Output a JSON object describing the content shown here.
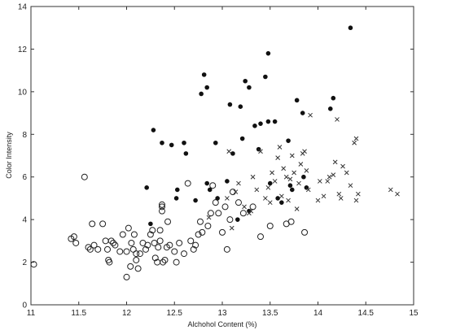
{
  "chart_data": {
    "type": "scatter",
    "title": "",
    "xlabel": "Alchohol Content (%)",
    "ylabel": "Color Intensity",
    "xlim": [
      11,
      15
    ],
    "ylim": [
      0,
      14
    ],
    "xticks": [
      11,
      11.5,
      12,
      12.5,
      13,
      13.5,
      14,
      14.5,
      15
    ],
    "yticks": [
      0,
      2,
      4,
      6,
      8,
      10,
      12,
      14
    ],
    "xtick_labels": [
      "11",
      "11.5",
      "12",
      "12.5",
      "13",
      "13.5",
      "14",
      "14.5",
      "15"
    ],
    "ytick_labels": [
      "0",
      "2",
      "4",
      "6",
      "8",
      "10",
      "12",
      "14"
    ],
    "grid": false,
    "legend": "none",
    "series": [
      {
        "marker": "circle",
        "color": "#222222",
        "points": [
          [
            11.03,
            1.9
          ],
          [
            11.42,
            3.1
          ],
          [
            11.45,
            3.2
          ],
          [
            11.47,
            2.9
          ],
          [
            11.56,
            6.0
          ],
          [
            11.6,
            2.7
          ],
          [
            11.62,
            2.6
          ],
          [
            11.64,
            3.8
          ],
          [
            11.66,
            2.8
          ],
          [
            11.7,
            2.6
          ],
          [
            11.75,
            3.8
          ],
          [
            11.78,
            3.0
          ],
          [
            11.8,
            2.6
          ],
          [
            11.81,
            2.1
          ],
          [
            11.82,
            2.0
          ],
          [
            11.84,
            3.0
          ],
          [
            11.86,
            2.9
          ],
          [
            11.88,
            2.8
          ],
          [
            11.93,
            2.5
          ],
          [
            11.96,
            3.3
          ],
          [
            12.0,
            2.5
          ],
          [
            12.02,
            3.6
          ],
          [
            12.0,
            1.3
          ],
          [
            12.04,
            1.8
          ],
          [
            12.05,
            2.9
          ],
          [
            12.07,
            2.6
          ],
          [
            12.08,
            3.3
          ],
          [
            12.1,
            2.4
          ],
          [
            12.1,
            2.1
          ],
          [
            12.12,
            1.7
          ],
          [
            12.14,
            2.4
          ],
          [
            12.17,
            2.9
          ],
          [
            12.2,
            2.6
          ],
          [
            12.22,
            2.8
          ],
          [
            12.25,
            3.3
          ],
          [
            12.27,
            3.5
          ],
          [
            12.29,
            2.9
          ],
          [
            12.3,
            2.2
          ],
          [
            12.32,
            2.0
          ],
          [
            12.33,
            2.7
          ],
          [
            12.35,
            3.0
          ],
          [
            12.35,
            3.5
          ],
          [
            12.37,
            4.7
          ],
          [
            12.37,
            4.6
          ],
          [
            12.37,
            4.4
          ],
          [
            12.38,
            2.0
          ],
          [
            12.4,
            2.1
          ],
          [
            12.42,
            2.7
          ],
          [
            12.43,
            3.9
          ],
          [
            12.45,
            2.8
          ],
          [
            12.5,
            2.5
          ],
          [
            12.52,
            2.0
          ],
          [
            12.55,
            2.9
          ],
          [
            12.6,
            2.4
          ],
          [
            12.64,
            5.7
          ],
          [
            12.67,
            3.0
          ],
          [
            12.7,
            2.6
          ],
          [
            12.72,
            2.8
          ],
          [
            12.75,
            3.3
          ],
          [
            12.77,
            3.9
          ],
          [
            12.79,
            3.4
          ],
          [
            12.85,
            3.7
          ],
          [
            12.88,
            4.3
          ],
          [
            12.9,
            5.6
          ],
          [
            12.93,
            4.8
          ],
          [
            12.96,
            4.3
          ],
          [
            13.0,
            3.4
          ],
          [
            13.03,
            4.6
          ],
          [
            13.05,
            2.6
          ],
          [
            13.08,
            4.0
          ],
          [
            13.11,
            5.3
          ],
          [
            13.17,
            4.8
          ],
          [
            13.22,
            4.3
          ],
          [
            13.32,
            4.6
          ],
          [
            13.4,
            3.2
          ],
          [
            13.5,
            3.7
          ],
          [
            13.67,
            3.8
          ],
          [
            13.72,
            3.9
          ],
          [
            13.86,
            3.4
          ]
        ]
      },
      {
        "marker": "star",
        "color": "#111111",
        "points": [
          [
            12.21,
            5.5
          ],
          [
            12.25,
            3.8
          ],
          [
            12.28,
            8.2
          ],
          [
            12.37,
            7.6
          ],
          [
            12.47,
            7.5
          ],
          [
            12.52,
            5.0
          ],
          [
            12.53,
            5.4
          ],
          [
            12.6,
            7.6
          ],
          [
            12.62,
            7.1
          ],
          [
            12.72,
            4.9
          ],
          [
            12.78,
            9.9
          ],
          [
            12.81,
            10.8
          ],
          [
            12.84,
            10.2
          ],
          [
            12.84,
            5.7
          ],
          [
            12.87,
            5.4
          ],
          [
            12.93,
            7.6
          ],
          [
            12.95,
            5.0
          ],
          [
            13.05,
            5.8
          ],
          [
            13.08,
            9.4
          ],
          [
            13.11,
            7.1
          ],
          [
            13.16,
            4.0
          ],
          [
            13.19,
            9.3
          ],
          [
            13.21,
            7.8
          ],
          [
            13.24,
            10.5
          ],
          [
            13.28,
            10.2
          ],
          [
            13.28,
            4.4
          ],
          [
            13.34,
            8.4
          ],
          [
            13.38,
            7.3
          ],
          [
            13.4,
            8.5
          ],
          [
            13.45,
            10.7
          ],
          [
            13.48,
            11.8
          ],
          [
            13.48,
            8.6
          ],
          [
            13.5,
            5.7
          ],
          [
            13.55,
            8.6
          ],
          [
            13.58,
            5.0
          ],
          [
            13.62,
            4.8
          ],
          [
            13.69,
            7.7
          ],
          [
            13.71,
            5.6
          ],
          [
            13.73,
            5.4
          ],
          [
            13.78,
            9.6
          ],
          [
            13.84,
            9.0
          ],
          [
            13.85,
            6.0
          ],
          [
            13.88,
            5.5
          ],
          [
            14.13,
            9.2
          ],
          [
            14.16,
            9.7
          ],
          [
            14.34,
            13.0
          ]
        ]
      },
      {
        "marker": "x",
        "color": "#333333",
        "points": [
          [
            12.86,
            4.1
          ],
          [
            13.05,
            5.0
          ],
          [
            13.07,
            7.2
          ],
          [
            13.1,
            3.6
          ],
          [
            13.14,
            5.3
          ],
          [
            13.17,
            5.7
          ],
          [
            13.23,
            4.6
          ],
          [
            13.28,
            4.3
          ],
          [
            13.3,
            4.4
          ],
          [
            13.32,
            6.0
          ],
          [
            13.36,
            5.4
          ],
          [
            13.4,
            7.2
          ],
          [
            13.45,
            5.0
          ],
          [
            13.48,
            5.5
          ],
          [
            13.5,
            4.8
          ],
          [
            13.52,
            6.2
          ],
          [
            13.55,
            5.8
          ],
          [
            13.58,
            6.9
          ],
          [
            13.6,
            7.4
          ],
          [
            13.62,
            5.1
          ],
          [
            13.64,
            6.4
          ],
          [
            13.67,
            6.0
          ],
          [
            13.69,
            4.9
          ],
          [
            13.71,
            5.9
          ],
          [
            13.73,
            7.0
          ],
          [
            13.75,
            6.2
          ],
          [
            13.78,
            4.5
          ],
          [
            13.8,
            5.7
          ],
          [
            13.82,
            6.6
          ],
          [
            13.84,
            7.1
          ],
          [
            13.86,
            7.2
          ],
          [
            13.88,
            6.3
          ],
          [
            13.9,
            5.4
          ],
          [
            13.92,
            8.9
          ],
          [
            14.0,
            4.9
          ],
          [
            14.02,
            5.8
          ],
          [
            14.06,
            5.1
          ],
          [
            14.1,
            5.8
          ],
          [
            14.12,
            6.0
          ],
          [
            14.16,
            6.1
          ],
          [
            14.18,
            6.7
          ],
          [
            14.2,
            8.7
          ],
          [
            14.22,
            5.2
          ],
          [
            14.24,
            5.0
          ],
          [
            14.26,
            6.5
          ],
          [
            14.3,
            6.2
          ],
          [
            14.34,
            5.6
          ],
          [
            14.38,
            7.6
          ],
          [
            14.4,
            7.8
          ],
          [
            14.42,
            5.2
          ],
          [
            14.4,
            4.9
          ],
          [
            14.76,
            5.4
          ],
          [
            14.83,
            5.2
          ]
        ]
      }
    ]
  }
}
